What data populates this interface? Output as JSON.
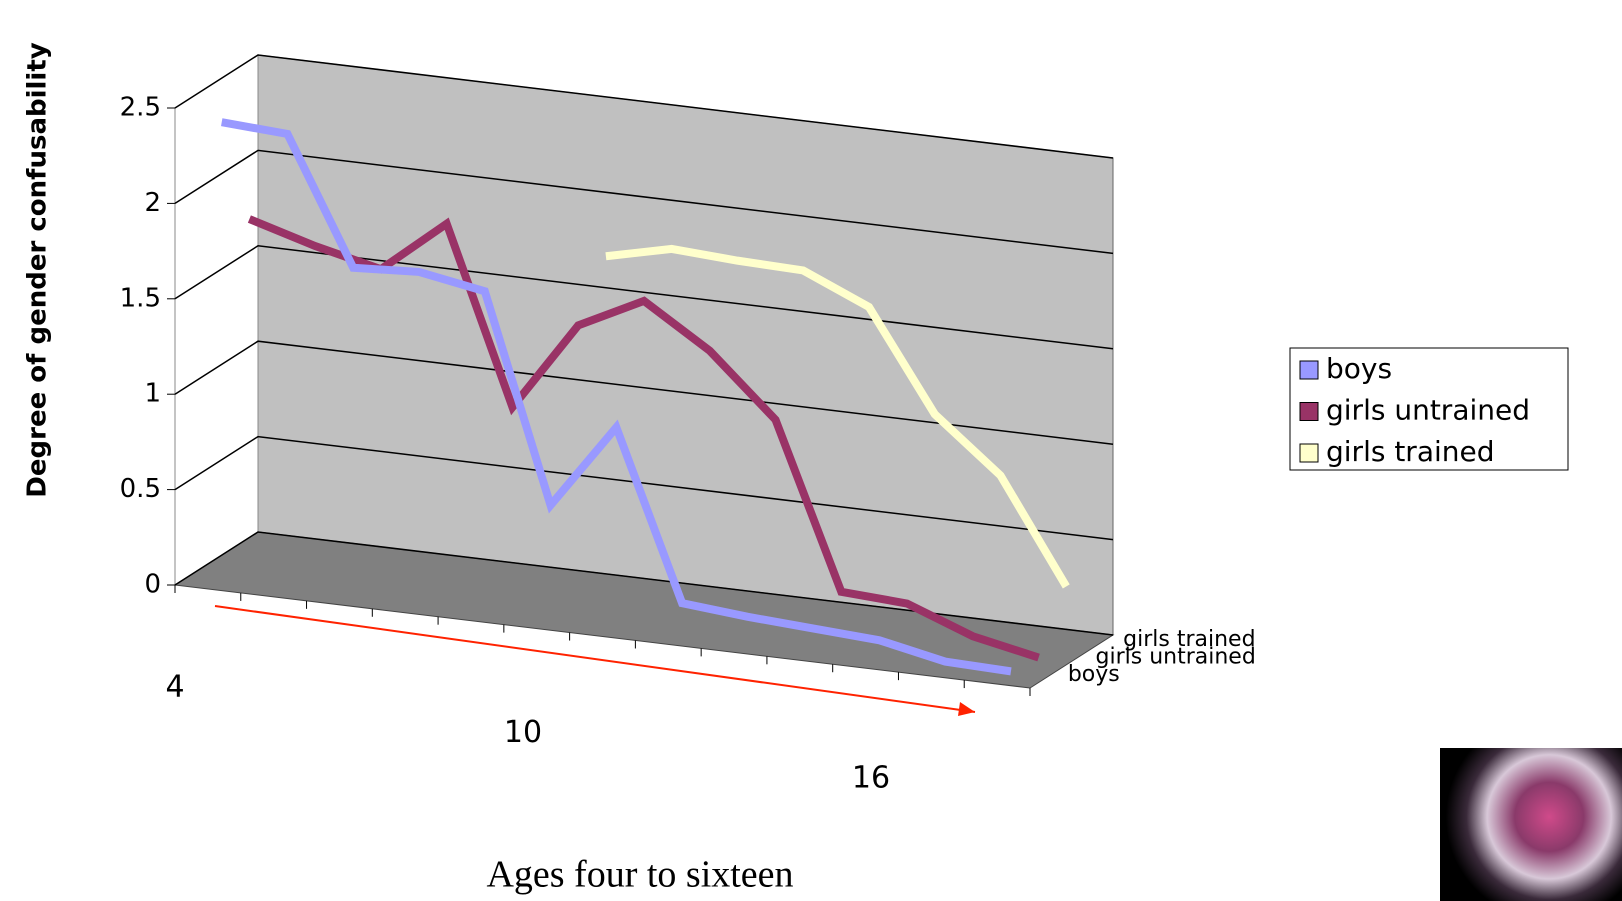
{
  "chart_data": {
    "type": "line3d",
    "y_label": "Degree of gender confusability",
    "x_label": "Ages four to sixteen",
    "categories": [
      "4",
      null,
      null,
      null,
      null,
      null,
      "10",
      null,
      null,
      null,
      null,
      null,
      "16"
    ],
    "series": [
      {
        "name": "boys",
        "color": "#9999ff",
        "values": [
          2.4,
          2.38,
          1.72,
          1.74,
          1.68,
          0.6,
          1.05,
          0.17,
          0.14,
          0.12,
          0.1,
          0.03,
          0.02
        ]
      },
      {
        "name": "girls untrained",
        "color": "#993366",
        "values": [
          1.8,
          1.7,
          1.62,
          1.9,
          0.98,
          1.45,
          1.62,
          1.4,
          1.08,
          0.22,
          0.2,
          0.07,
          0.0
        ]
      },
      {
        "name": "girls trained",
        "color": "#ffffcc",
        "values": [
          null,
          null,
          null,
          null,
          null,
          1.72,
          1.8,
          1.78,
          1.77,
          1.62,
          1.1,
          0.82,
          0.28
        ]
      }
    ],
    "ylim": [
      0,
      2.5
    ],
    "yticks": [
      0,
      0.5,
      1,
      1.5,
      2,
      2.5
    ],
    "grid": true,
    "legend": "right"
  }
}
